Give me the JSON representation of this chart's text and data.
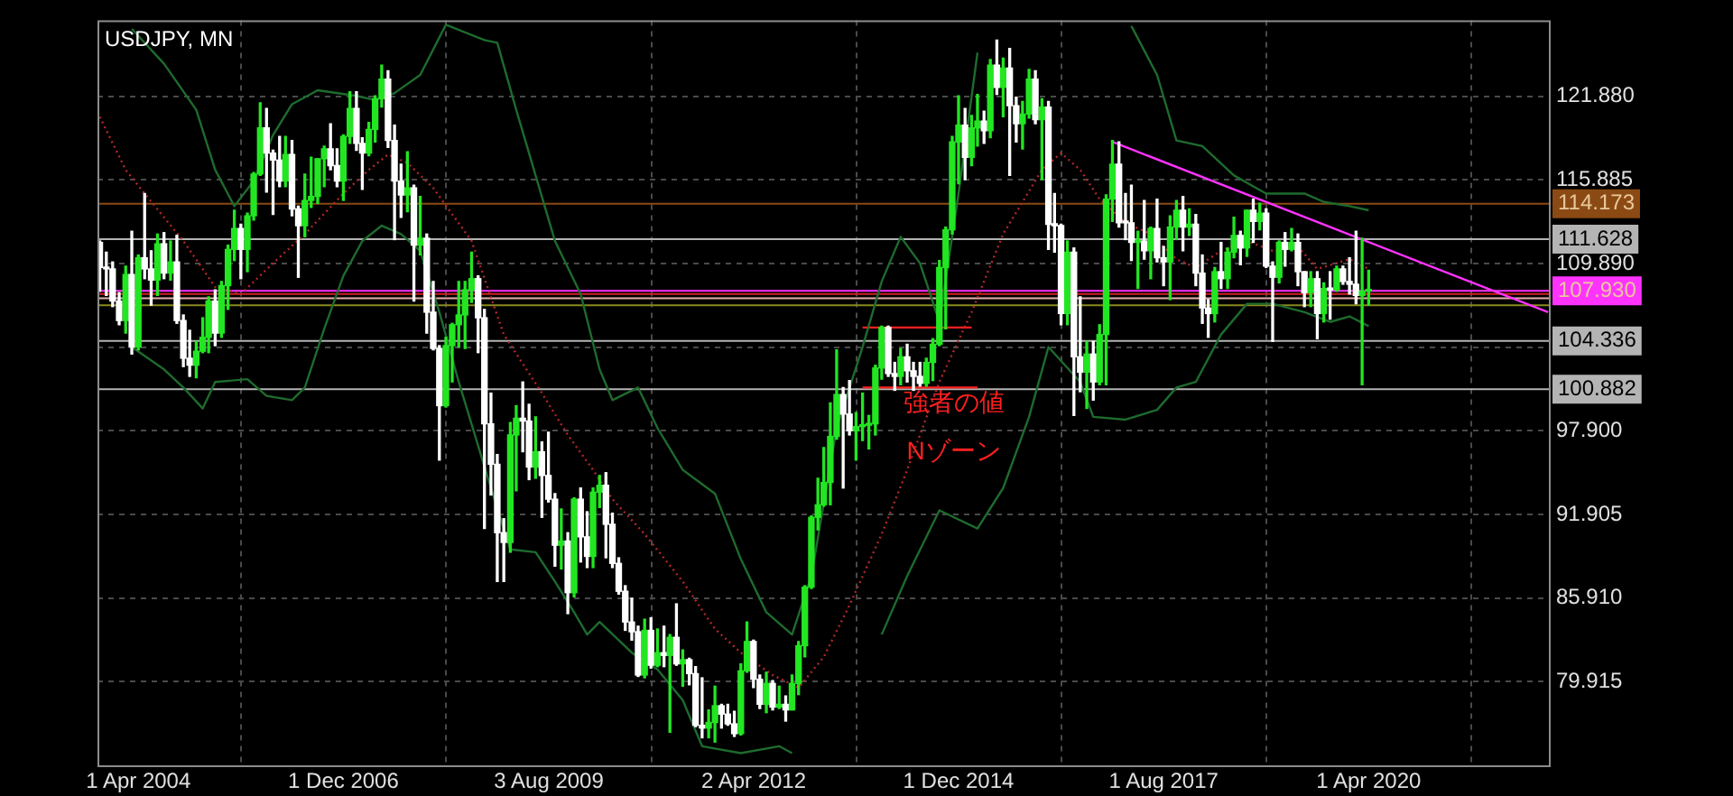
{
  "chart_data": {
    "type": "candlestick",
    "title": "USDJPY, MN",
    "x": [
      "2003-10",
      "2003-11",
      "2003-12",
      "2004-01",
      "2004-02",
      "2004-03",
      "2004-04",
      "2004-05",
      "2004-06",
      "2004-07",
      "2004-08",
      "2004-09",
      "2004-10",
      "2004-11",
      "2004-12",
      "2005-01",
      "2005-02",
      "2005-03",
      "2005-04",
      "2005-05",
      "2005-06",
      "2005-07",
      "2005-08",
      "2005-09",
      "2005-10",
      "2005-11",
      "2005-12",
      "2006-01",
      "2006-02",
      "2006-03",
      "2006-04",
      "2006-05",
      "2006-06",
      "2006-07",
      "2006-08",
      "2006-09",
      "2006-10",
      "2006-11",
      "2006-12",
      "2007-01",
      "2007-02",
      "2007-03",
      "2007-04",
      "2007-05",
      "2007-06",
      "2007-07",
      "2007-08",
      "2007-09",
      "2007-10",
      "2007-11",
      "2007-12",
      "2008-01",
      "2008-02",
      "2008-03",
      "2008-04",
      "2008-05",
      "2008-06",
      "2008-07",
      "2008-08",
      "2008-09",
      "2008-10",
      "2008-11",
      "2008-12",
      "2009-01",
      "2009-02",
      "2009-03",
      "2009-04",
      "2009-05",
      "2009-06",
      "2009-07",
      "2009-08",
      "2009-09",
      "2009-10",
      "2009-11",
      "2009-12",
      "2010-01",
      "2010-02",
      "2010-03",
      "2010-04",
      "2010-05",
      "2010-06",
      "2010-07",
      "2010-08",
      "2010-09",
      "2010-10",
      "2010-11",
      "2010-12",
      "2011-01",
      "2011-02",
      "2011-03",
      "2011-04",
      "2011-05",
      "2011-06",
      "2011-07",
      "2011-08",
      "2011-09",
      "2011-10",
      "2011-11",
      "2011-12",
      "2012-01",
      "2012-02",
      "2012-03",
      "2012-04",
      "2012-05",
      "2012-06",
      "2012-07",
      "2012-08",
      "2012-09",
      "2012-10",
      "2012-11",
      "2012-12",
      "2013-01",
      "2013-02",
      "2013-03",
      "2013-04",
      "2013-05",
      "2013-06",
      "2013-07",
      "2013-08",
      "2013-09",
      "2013-10",
      "2013-11",
      "2013-12",
      "2014-01",
      "2014-02",
      "2014-03",
      "2014-04",
      "2014-05",
      "2014-06",
      "2014-07",
      "2014-08",
      "2014-09",
      "2014-10",
      "2014-11",
      "2014-12",
      "2015-01",
      "2015-02",
      "2015-03",
      "2015-04",
      "2015-05",
      "2015-06",
      "2015-07",
      "2015-08",
      "2015-09",
      "2015-10",
      "2015-11",
      "2015-12",
      "2016-01",
      "2016-02",
      "2016-03",
      "2016-04",
      "2016-05",
      "2016-06",
      "2016-07",
      "2016-08",
      "2016-09",
      "2016-10",
      "2016-11",
      "2016-12",
      "2017-01",
      "2017-02",
      "2017-03",
      "2017-04",
      "2017-05",
      "2017-06",
      "2017-07",
      "2017-08",
      "2017-09",
      "2017-10",
      "2017-11",
      "2017-12",
      "2018-01",
      "2018-02",
      "2018-03",
      "2018-04",
      "2018-05",
      "2018-06",
      "2018-07",
      "2018-08",
      "2018-09",
      "2018-10",
      "2018-11",
      "2018-12",
      "2019-01",
      "2019-02",
      "2019-03",
      "2019-04",
      "2019-05",
      "2019-06",
      "2019-07",
      "2019-08",
      "2019-09",
      "2019-10",
      "2019-11",
      "2019-12",
      "2020-01",
      "2020-02",
      "2020-03",
      "2020-04"
    ],
    "ohlc": [
      [
        111.4,
        111.5,
        107.9,
        109.6
      ],
      [
        109.6,
        110.7,
        107.6,
        109.5
      ],
      [
        109.5,
        110.0,
        106.8,
        107.2
      ],
      [
        107.2,
        107.8,
        105.5,
        105.8
      ],
      [
        105.8,
        109.7,
        104.9,
        109.1
      ],
      [
        109.1,
        112.2,
        103.4,
        103.9
      ],
      [
        103.9,
        110.5,
        103.7,
        110.3
      ],
      [
        110.3,
        114.9,
        108.8,
        109.5
      ],
      [
        109.5,
        110.8,
        106.9,
        108.7
      ],
      [
        108.7,
        112.0,
        107.6,
        111.3
      ],
      [
        111.3,
        112.1,
        108.8,
        109.2
      ],
      [
        109.2,
        111.5,
        108.7,
        110.0
      ],
      [
        110.0,
        111.9,
        105.6,
        105.8
      ],
      [
        105.8,
        106.2,
        102.5,
        103.1
      ],
      [
        103.1,
        105.1,
        101.8,
        102.6
      ],
      [
        102.6,
        104.3,
        101.7,
        103.6
      ],
      [
        103.6,
        106.0,
        103.5,
        104.6
      ],
      [
        104.6,
        107.5,
        103.5,
        107.2
      ],
      [
        107.2,
        108.0,
        104.0,
        104.9
      ],
      [
        104.9,
        108.6,
        104.6,
        108.3
      ],
      [
        108.3,
        111.2,
        106.6,
        110.9
      ],
      [
        110.9,
        113.7,
        110.1,
        112.4
      ],
      [
        112.4,
        112.7,
        108.8,
        110.9
      ],
      [
        110.9,
        113.5,
        109.3,
        113.3
      ],
      [
        113.3,
        116.4,
        113.0,
        116.3
      ],
      [
        116.3,
        121.4,
        116.2,
        119.6
      ],
      [
        119.6,
        121.0,
        115.0,
        117.8
      ],
      [
        117.8,
        118.0,
        113.4,
        117.3
      ],
      [
        117.3,
        119.0,
        115.4,
        115.8
      ],
      [
        115.8,
        119.0,
        115.4,
        117.7
      ],
      [
        117.7,
        118.7,
        113.3,
        113.8
      ],
      [
        113.8,
        114.0,
        108.9,
        112.6
      ],
      [
        112.6,
        116.3,
        111.8,
        114.4
      ],
      [
        114.4,
        117.5,
        113.9,
        114.7
      ],
      [
        114.7,
        117.4,
        114.2,
        117.4
      ],
      [
        117.4,
        118.3,
        115.4,
        118.1
      ],
      [
        118.1,
        119.9,
        116.6,
        116.9
      ],
      [
        116.9,
        118.1,
        115.4,
        115.8
      ],
      [
        115.8,
        119.1,
        114.4,
        119.0
      ],
      [
        119.0,
        122.2,
        118.5,
        121.0
      ],
      [
        121.0,
        122.2,
        118.0,
        118.5
      ],
      [
        118.5,
        118.9,
        115.2,
        117.8
      ],
      [
        117.8,
        120.0,
        117.6,
        119.5
      ],
      [
        119.5,
        121.9,
        118.6,
        121.7
      ],
      [
        121.7,
        124.1,
        121.1,
        123.1
      ],
      [
        123.1,
        123.7,
        118.2,
        118.7
      ],
      [
        118.7,
        119.8,
        111.6,
        115.8
      ],
      [
        115.8,
        117.0,
        113.2,
        114.8
      ],
      [
        114.8,
        117.9,
        113.6,
        115.3
      ],
      [
        115.3,
        115.5,
        107.2,
        111.2
      ],
      [
        111.2,
        114.7,
        110.5,
        111.7
      ],
      [
        111.7,
        112.0,
        104.9,
        106.4
      ],
      [
        106.4,
        108.6,
        103.7,
        103.8
      ],
      [
        103.8,
        104.0,
        95.8,
        99.7
      ],
      [
        99.7,
        104.6,
        99.6,
        104.0
      ],
      [
        104.0,
        105.6,
        101.4,
        105.5
      ],
      [
        105.5,
        108.6,
        103.9,
        106.2
      ],
      [
        106.2,
        108.6,
        103.8,
        108.0
      ],
      [
        108.0,
        110.7,
        107.1,
        108.8
      ],
      [
        108.8,
        109.0,
        103.5,
        106.0
      ],
      [
        106.0,
        106.6,
        90.9,
        98.4
      ],
      [
        98.4,
        100.6,
        93.3,
        95.5
      ],
      [
        95.5,
        96.2,
        87.1,
        90.6
      ],
      [
        90.6,
        91.6,
        87.1,
        89.9
      ],
      [
        89.9,
        98.5,
        89.2,
        97.6
      ],
      [
        97.6,
        99.7,
        93.6,
        98.8
      ],
      [
        98.8,
        101.4,
        96.4,
        98.6
      ],
      [
        98.6,
        99.8,
        94.4,
        95.3
      ],
      [
        95.3,
        98.9,
        94.5,
        96.4
      ],
      [
        96.4,
        97.1,
        91.7,
        94.7
      ],
      [
        94.7,
        97.8,
        92.8,
        93.0
      ],
      [
        93.0,
        93.4,
        88.2,
        89.7
      ],
      [
        89.7,
        92.3,
        88.0,
        90.0
      ],
      [
        90.0,
        90.6,
        84.8,
        86.3
      ],
      [
        86.3,
        93.1,
        86.0,
        93.0
      ],
      [
        93.0,
        93.8,
        88.5,
        90.3
      ],
      [
        90.3,
        92.1,
        88.1,
        88.9
      ],
      [
        88.9,
        93.8,
        88.1,
        93.5
      ],
      [
        93.5,
        94.7,
        92.4,
        94.0
      ],
      [
        94.0,
        94.9,
        88.8,
        91.2
      ],
      [
        91.2,
        92.0,
        88.1,
        88.4
      ],
      [
        88.4,
        88.8,
        86.2,
        86.4
      ],
      [
        86.4,
        86.8,
        83.6,
        84.2
      ],
      [
        84.2,
        85.9,
        82.9,
        83.5
      ],
      [
        83.5,
        83.9,
        80.3,
        80.4
      ],
      [
        80.4,
        84.4,
        80.2,
        83.6
      ],
      [
        83.6,
        84.5,
        80.9,
        81.1
      ],
      [
        81.1,
        83.7,
        81.0,
        82.0
      ],
      [
        82.0,
        83.9,
        81.0,
        81.8
      ],
      [
        81.8,
        83.3,
        76.3,
        83.1
      ],
      [
        83.1,
        85.5,
        81.1,
        81.2
      ],
      [
        81.2,
        82.2,
        79.6,
        81.5
      ],
      [
        81.5,
        81.6,
        79.7,
        80.5
      ],
      [
        80.5,
        81.0,
        76.7,
        76.8
      ],
      [
        76.8,
        80.2,
        75.9,
        76.6
      ],
      [
        76.6,
        77.9,
        75.9,
        77.0
      ],
      [
        77.0,
        79.6,
        75.6,
        78.2
      ],
      [
        78.2,
        78.3,
        76.6,
        77.6
      ],
      [
        77.6,
        78.3,
        76.8,
        76.9
      ],
      [
        76.9,
        77.8,
        76.0,
        76.2
      ],
      [
        76.2,
        81.2,
        76.1,
        80.7
      ],
      [
        80.7,
        84.2,
        80.6,
        82.8
      ],
      [
        82.8,
        82.9,
        79.5,
        80.1
      ],
      [
        80.1,
        80.4,
        78.0,
        78.3
      ],
      [
        78.3,
        80.6,
        77.7,
        79.8
      ],
      [
        79.8,
        80.0,
        77.9,
        78.1
      ],
      [
        78.1,
        79.6,
        78.0,
        78.3
      ],
      [
        78.3,
        78.9,
        77.1,
        77.9
      ],
      [
        77.9,
        80.4,
        77.9,
        79.8
      ],
      [
        79.8,
        82.8,
        79.0,
        82.5
      ],
      [
        82.5,
        86.8,
        81.7,
        86.7
      ],
      [
        86.7,
        91.8,
        86.6,
        91.7
      ],
      [
        91.7,
        94.5,
        90.8,
        92.6
      ],
      [
        92.6,
        96.7,
        92.5,
        94.2
      ],
      [
        94.2,
        99.9,
        92.6,
        97.5
      ],
      [
        97.5,
        103.7,
        97.3,
        100.5
      ],
      [
        100.5,
        101.0,
        93.8,
        99.1
      ],
      [
        99.1,
        101.5,
        97.6,
        97.9
      ],
      [
        97.9,
        99.2,
        95.8,
        98.2
      ],
      [
        98.2,
        100.6,
        97.2,
        98.3
      ],
      [
        98.3,
        99.0,
        96.6,
        98.4
      ],
      [
        98.4,
        102.6,
        97.6,
        102.4
      ],
      [
        102.4,
        105.4,
        101.6,
        105.3
      ],
      [
        105.3,
        105.4,
        101.8,
        102.0
      ],
      [
        102.0,
        102.8,
        100.8,
        101.8
      ],
      [
        101.8,
        103.8,
        101.2,
        103.2
      ],
      [
        103.2,
        104.1,
        101.4,
        102.2
      ],
      [
        102.2,
        102.8,
        100.8,
        101.8
      ],
      [
        101.8,
        102.8,
        101.1,
        101.3
      ],
      [
        101.3,
        103.1,
        101.1,
        102.8
      ],
      [
        102.8,
        104.5,
        101.5,
        104.1
      ],
      [
        104.1,
        110.1,
        104.0,
        109.6
      ],
      [
        109.6,
        112.5,
        105.2,
        112.3
      ],
      [
        112.3,
        119.0,
        112.0,
        118.6
      ],
      [
        118.6,
        121.9,
        115.6,
        119.8
      ],
      [
        119.8,
        121.0,
        115.9,
        117.5
      ],
      [
        117.5,
        120.5,
        116.9,
        119.6
      ],
      [
        119.6,
        122.0,
        118.3,
        120.1
      ],
      [
        120.1,
        120.8,
        118.5,
        119.4
      ],
      [
        119.4,
        124.5,
        118.9,
        124.1
      ],
      [
        124.1,
        125.9,
        122.0,
        122.5
      ],
      [
        122.5,
        124.6,
        120.4,
        123.9
      ],
      [
        123.9,
        125.3,
        116.2,
        121.2
      ],
      [
        121.2,
        121.8,
        118.6,
        119.9
      ],
      [
        119.9,
        121.5,
        118.1,
        120.6
      ],
      [
        120.6,
        123.8,
        120.3,
        123.1
      ],
      [
        123.1,
        123.7,
        119.9,
        120.2
      ],
      [
        120.2,
        121.7,
        115.9,
        121.1
      ],
      [
        121.1,
        121.5,
        110.9,
        112.7
      ],
      [
        112.7,
        114.9,
        110.7,
        112.6
      ],
      [
        112.6,
        112.7,
        105.5,
        106.3
      ],
      [
        106.3,
        111.5,
        105.5,
        110.7
      ],
      [
        110.7,
        111.0,
        99.0,
        103.2
      ],
      [
        103.2,
        107.5,
        100.7,
        102.1
      ],
      [
        102.1,
        104.3,
        99.5,
        103.4
      ],
      [
        103.4,
        104.3,
        100.1,
        101.4
      ],
      [
        101.4,
        105.5,
        101.2,
        104.8
      ],
      [
        104.8,
        114.8,
        101.2,
        114.5
      ],
      [
        114.5,
        118.7,
        112.9,
        117.0
      ],
      [
        117.0,
        118.6,
        112.5,
        112.8
      ],
      [
        112.8,
        114.9,
        111.6,
        112.8
      ],
      [
        112.8,
        115.5,
        110.1,
        111.4
      ],
      [
        111.4,
        112.2,
        108.1,
        111.5
      ],
      [
        111.5,
        114.4,
        110.2,
        110.8
      ],
      [
        110.8,
        112.5,
        108.8,
        112.4
      ],
      [
        112.4,
        114.5,
        110.0,
        110.3
      ],
      [
        110.3,
        111.1,
        108.3,
        110.0
      ],
      [
        110.0,
        113.3,
        107.3,
        112.5
      ],
      [
        112.5,
        114.4,
        111.6,
        113.7
      ],
      [
        113.7,
        114.7,
        110.8,
        112.5
      ],
      [
        112.5,
        113.8,
        111.9,
        112.7
      ],
      [
        112.7,
        113.4,
        108.3,
        109.2
      ],
      [
        109.2,
        110.5,
        105.6,
        106.7
      ],
      [
        106.7,
        107.3,
        104.6,
        106.3
      ],
      [
        106.3,
        109.6,
        105.7,
        109.3
      ],
      [
        109.3,
        111.4,
        108.1,
        108.8
      ],
      [
        108.8,
        111.0,
        108.1,
        110.7
      ],
      [
        110.7,
        113.2,
        110.3,
        111.9
      ],
      [
        111.9,
        112.2,
        109.8,
        111.0
      ],
      [
        111.0,
        113.7,
        110.4,
        113.7
      ],
      [
        113.7,
        114.5,
        111.4,
        112.9
      ],
      [
        112.9,
        114.2,
        112.3,
        113.5
      ],
      [
        113.5,
        113.8,
        109.6,
        109.7
      ],
      [
        109.7,
        110.0,
        104.3,
        108.9
      ],
      [
        108.9,
        111.5,
        108.5,
        111.4
      ],
      [
        111.4,
        112.1,
        109.7,
        110.9
      ],
      [
        110.9,
        112.4,
        110.8,
        111.4
      ],
      [
        111.4,
        112.0,
        108.3,
        109.3
      ],
      [
        109.3,
        109.3,
        106.8,
        107.8
      ],
      [
        107.8,
        109.3,
        106.8,
        108.8
      ],
      [
        108.8,
        109.3,
        104.5,
        106.3
      ],
      [
        106.3,
        108.5,
        105.7,
        108.1
      ],
      [
        108.1,
        109.3,
        105.9,
        108.0
      ],
      [
        108.0,
        109.7,
        107.9,
        109.5
      ],
      [
        109.5,
        109.7,
        108.4,
        108.6
      ],
      [
        108.6,
        110.3,
        107.7,
        108.4
      ],
      [
        108.4,
        112.2,
        107.0,
        107.6
      ],
      [
        107.6,
        111.7,
        101.2,
        107.9
      ],
      [
        107.9,
        109.4,
        106.9,
        107.93
      ]
    ],
    "colors": [
      "#ffffff",
      "#ffffff",
      "#ffffff",
      "#ffffff",
      "#22e622",
      "#ffffff",
      "#22e622",
      "#ffffff",
      "#ffffff",
      "#22e622",
      "#ffffff",
      "#22e622",
      "#ffffff",
      "#ffffff",
      "#ffffff",
      "#22e622",
      "#22e622",
      "#22e622",
      "#ffffff",
      "#22e622",
      "#22e622",
      "#22e622",
      "#ffffff",
      "#22e622",
      "#22e622",
      "#22e622",
      "#ffffff",
      "#ffffff",
      "#ffffff",
      "#22e622",
      "#ffffff",
      "#ffffff",
      "#22e622",
      "#22e622",
      "#22e622",
      "#22e622",
      "#ffffff",
      "#ffffff",
      "#22e622",
      "#22e622",
      "#ffffff",
      "#ffffff",
      "#22e622",
      "#22e622",
      "#22e622",
      "#ffffff",
      "#ffffff",
      "#ffffff",
      "#22e622",
      "#ffffff",
      "#22e622",
      "#ffffff",
      "#ffffff",
      "#ffffff",
      "#22e622",
      "#22e622",
      "#22e622",
      "#22e622",
      "#22e622",
      "#ffffff",
      "#ffffff",
      "#ffffff",
      "#ffffff",
      "#ffffff",
      "#22e622",
      "#22e622",
      "#ffffff",
      "#ffffff",
      "#22e622",
      "#ffffff",
      "#ffffff",
      "#ffffff",
      "#22e622",
      "#ffffff",
      "#22e622",
      "#ffffff",
      "#ffffff",
      "#22e622",
      "#22e622",
      "#ffffff",
      "#ffffff",
      "#ffffff",
      "#ffffff",
      "#ffffff",
      "#ffffff",
      "#22e622",
      "#ffffff",
      "#22e622",
      "#ffffff",
      "#22e622",
      "#ffffff",
      "#22e622",
      "#ffffff",
      "#ffffff",
      "#ffffff",
      "#22e622",
      "#22e622",
      "#ffffff",
      "#ffffff",
      "#ffffff",
      "#22e622",
      "#22e622",
      "#ffffff",
      "#ffffff",
      "#22e622",
      "#ffffff",
      "#22e622",
      "#ffffff",
      "#22e622",
      "#22e622",
      "#22e622",
      "#22e622",
      "#22e622",
      "#22e622",
      "#22e622",
      "#22e622",
      "#ffffff",
      "#ffffff",
      "#22e622",
      "#22e622",
      "#22e622",
      "#22e622",
      "#22e622",
      "#ffffff",
      "#ffffff",
      "#22e622",
      "#ffffff",
      "#ffffff",
      "#ffffff",
      "#22e622",
      "#22e622",
      "#22e622",
      "#22e622",
      "#22e622",
      "#22e622",
      "#ffffff",
      "#22e622",
      "#22e622",
      "#ffffff",
      "#22e622",
      "#ffffff",
      "#22e622",
      "#ffffff",
      "#ffffff",
      "#22e622",
      "#22e622",
      "#ffffff",
      "#22e622",
      "#ffffff",
      "#ffffff",
      "#ffffff",
      "#22e622",
      "#ffffff",
      "#ffffff",
      "#22e622",
      "#ffffff",
      "#22e622",
      "#22e622",
      "#22e622",
      "#ffffff",
      "#ffffff",
      "#ffffff",
      "#22e622",
      "#ffffff",
      "#22e622",
      "#ffffff",
      "#ffffff",
      "#22e622",
      "#22e622",
      "#ffffff",
      "#22e622",
      "#ffffff",
      "#ffffff",
      "#ffffff",
      "#22e622",
      "#ffffff",
      "#22e622",
      "#22e622",
      "#ffffff",
      "#22e622",
      "#ffffff",
      "#22e622",
      "#ffffff",
      "#ffffff",
      "#22e622",
      "#ffffff",
      "#22e622",
      "#ffffff",
      "#ffffff",
      "#22e622",
      "#ffffff",
      "#22e622",
      "#ffffff",
      "#22e622",
      "#ffffff",
      "#ffffff",
      "#ffffff",
      "#22e622",
      "#22e622"
    ],
    "series": [
      {
        "type": "line",
        "color": "#1e6b2e",
        "x": [
          "2004-03",
          "2004-08",
          "2005-01",
          "2005-04",
          "2005-07",
          "2005-10",
          "2006-01",
          "2006-04",
          "2006-08",
          "2007-02",
          "2007-05",
          "2007-08",
          "2007-12",
          "2008-04",
          "2008-10",
          "2008-12",
          "2009-03",
          "2009-09",
          "2010-01",
          "2010-04",
          "2010-06",
          "2010-10",
          "2011-01",
          "2011-05",
          "2011-10",
          "2012-02",
          "2012-06",
          "2012-10",
          "2013-01",
          "2013-05",
          "2013-09",
          "2013-12",
          "2014-03",
          "2014-06",
          "2014-09",
          "2014-12",
          "2015-03",
          "2015-06",
          "2017-03",
          "2017-07",
          "2017-10",
          "2018-02",
          "2018-07",
          "2018-12",
          "2019-06",
          "2019-09",
          "2020-01",
          "2020-04"
        ],
        "values": [
          126.7,
          124.2,
          120.9,
          116.6,
          114.0,
          115.8,
          119.1,
          121.3,
          122.3,
          121.9,
          121.6,
          122.1,
          123.4,
          127.0,
          125.9,
          125.7,
          120.9,
          111.5,
          107.7,
          102.3,
          100.1,
          101.0,
          98.1,
          95.1,
          93.4,
          88.7,
          84.9,
          83.3,
          87.5,
          98.1,
          103.9,
          108.6,
          111.8,
          109.9,
          105.7,
          114.9,
          125.0,
          null,
          126.9,
          123.4,
          118.7,
          118.3,
          116.2,
          114.9,
          114.9,
          114.3,
          114.0,
          113.7
        ]
      },
      {
        "type": "line",
        "color": "#b02828",
        "line_style": "dotted",
        "x": [
          "2003-10",
          "2004-02",
          "2004-05",
          "2004-11",
          "2005-04",
          "2005-08",
          "2006-01",
          "2006-06",
          "2006-12",
          "2007-04",
          "2007-07",
          "2007-10",
          "2008-02",
          "2008-08",
          "2009-01",
          "2009-07",
          "2009-11",
          "2010-03",
          "2010-06",
          "2010-11",
          "2011-05",
          "2011-10",
          "2012-02",
          "2012-07",
          "2012-11",
          "2013-03",
          "2013-07",
          "2013-12",
          "2014-04",
          "2014-09",
          "2015-02",
          "2015-07",
          "2016-01",
          "2016-04",
          "2016-07",
          "2016-10",
          "2017-02",
          "2017-06",
          "2017-10",
          "2018-01",
          "2018-05",
          "2018-09",
          "2019-01",
          "2019-05",
          "2019-08",
          "2020-01",
          "2020-04"
        ],
        "values": [
          120.4,
          116.6,
          114.9,
          111.5,
          108.2,
          107.7,
          109.9,
          112.0,
          114.9,
          116.6,
          117.7,
          117.1,
          115.3,
          111.5,
          104.8,
          100.6,
          97.6,
          95.1,
          93.0,
          90.5,
          87.1,
          83.7,
          82.0,
          80.4,
          79.5,
          81.7,
          85.4,
          90.5,
          95.1,
          101.4,
          106.4,
          112.0,
          116.6,
          117.8,
          116.6,
          114.5,
          112.8,
          112.0,
          110.2,
          109.6,
          110.8,
          111.5,
          110.8,
          111.1,
          109.5,
          110.2,
          109.5
        ]
      },
      {
        "type": "line",
        "color": "#1e6b2e",
        "x": [
          "2004-03",
          "2004-08",
          "2004-11",
          "2005-02",
          "2005-04",
          "2005-09",
          "2005-12",
          "2006-04",
          "2006-06",
          "2006-09",
          "2006-12",
          "2007-03",
          "2007-06",
          "2007-09",
          "2007-12",
          "2008-03",
          "2008-06",
          "2008-11",
          "2009-02",
          "2009-06",
          "2009-09",
          "2009-12",
          "2010-02",
          "2010-04",
          "2010-09",
          "2011-01",
          "2011-05",
          "2011-08",
          "2012-02",
          "2012-08",
          "2012-10",
          "2013-01",
          "2013-12",
          "2014-04",
          "2014-09",
          "2015-03",
          "2015-07",
          "2015-11",
          "2016-02",
          "2016-07",
          "2016-09",
          "2017-02",
          "2017-07",
          "2017-10",
          "2018-01",
          "2018-05",
          "2018-09",
          "2019-01",
          "2019-06",
          "2019-10",
          "2020-01",
          "2020-04"
        ],
        "values": [
          103.9,
          102.3,
          101.0,
          99.5,
          101.4,
          101.6,
          100.4,
          100.1,
          101.0,
          105.2,
          109.0,
          111.5,
          112.6,
          112.0,
          110.8,
          106.4,
          101.4,
          93.8,
          89.4,
          89.2,
          87.1,
          84.9,
          83.3,
          84.2,
          82.0,
          80.8,
          78.6,
          75.3,
          74.8,
          75.3,
          74.8,
          null,
          83.3,
          87.5,
          92.2,
          90.9,
          93.8,
          98.9,
          103.9,
          101.4,
          98.9,
          98.7,
          99.4,
          101.0,
          101.4,
          104.8,
          107.0,
          107.0,
          106.4,
          105.7,
          106.1,
          105.4
        ]
      },
      {
        "type": "line",
        "color": "#ff33ff",
        "x": [
          "2016-12",
          "2022-08"
        ],
        "values": [
          118.6,
          106.4
        ]
      },
      {
        "type": "line",
        "color": "#ff2020",
        "x": [
          "2013-09",
          "2015-02"
        ],
        "values": [
          105.3,
          105.3
        ]
      },
      {
        "type": "line",
        "color": "#ff2020",
        "x": [
          "2013-09",
          "2015-03"
        ],
        "values": [
          101.0,
          101.0
        ]
      }
    ],
    "ref_lines": [
      {
        "axis": "y",
        "value": 114.173,
        "label": "114.173",
        "color": "#8b4a14"
      },
      {
        "axis": "y",
        "value": 111.628,
        "label": "111.628",
        "color": "#b4b4b4"
      },
      {
        "axis": "y",
        "value": 107.93,
        "label": "107.930",
        "color": "#ff33ff"
      },
      {
        "axis": "y",
        "value": 107.7,
        "color": "#d02020"
      },
      {
        "axis": "y",
        "value": 107.4,
        "color": "#e8b0b0"
      },
      {
        "axis": "y",
        "value": 106.9,
        "color": "#8a8a20"
      },
      {
        "axis": "y",
        "value": 104.336,
        "label": "104.336",
        "color": "#b4b4b4"
      },
      {
        "axis": "y",
        "value": 100.882,
        "label": "100.882",
        "color": "#b4b4b4"
      }
    ],
    "annotations": [
      "強者の値",
      "Nゾーン"
    ],
    "xlim": [
      "2003-09-20",
      "2022-08-05"
    ],
    "ylim": [
      73.93,
      127.32
    ],
    "xticks": [
      {
        "value": "2004-04-01",
        "label": "1 Apr 2004"
      },
      {
        "value": "2006-12-01",
        "label": "1 Dec 2006"
      },
      {
        "value": "2009-08-03",
        "label": "3 Aug 2009"
      },
      {
        "value": "2012-04-02",
        "label": "2 Apr 2012"
      },
      {
        "value": "2014-12-01",
        "label": "1 Dec 2014"
      },
      {
        "value": "2017-08-01",
        "label": "1 Aug 2017"
      },
      {
        "value": "2020-04-01",
        "label": "1 Apr 2020"
      }
    ],
    "yticks": [
      79.915,
      {
        "value": 85.91,
        "label": "85.910"
      },
      91.905,
      {
        "value": 97.9,
        "label": "97.900"
      },
      {
        "value": 103.895,
        "label": null
      },
      {
        "value": 109.89,
        "label": "109.890"
      },
      115.885,
      {
        "value": 121.88,
        "label": "121.880"
      }
    ],
    "grid": true
  }
}
